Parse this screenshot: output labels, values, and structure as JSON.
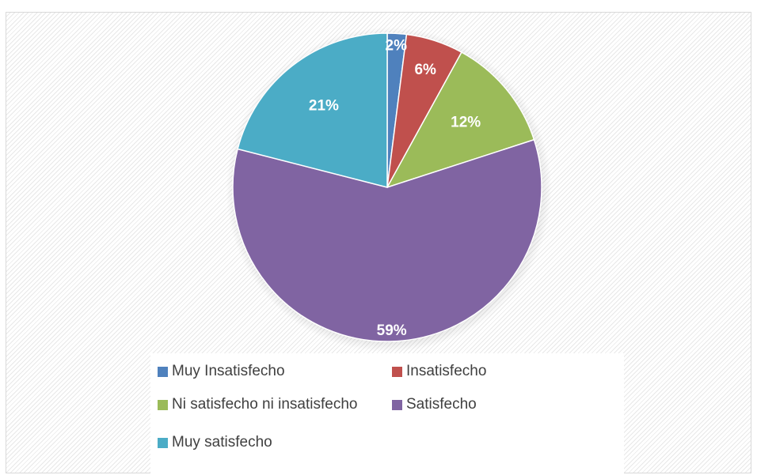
{
  "chart_data": {
    "type": "pie",
    "title": "",
    "categories": [
      "Muy Insatisfecho",
      "Insatisfecho",
      "Ni satisfecho ni insatisfecho",
      "Satisfecho",
      "Muy satisfecho"
    ],
    "values": [
      2,
      6,
      12,
      59,
      21
    ],
    "data_labels": [
      "2%",
      "6%",
      "12%",
      "59%",
      "21%"
    ],
    "colors": [
      "#4f81bd",
      "#c0504d",
      "#9bbb59",
      "#8064a2",
      "#4bacc6"
    ],
    "legend_position": "bottom",
    "start_angle": "12 o'clock, clockwise"
  }
}
